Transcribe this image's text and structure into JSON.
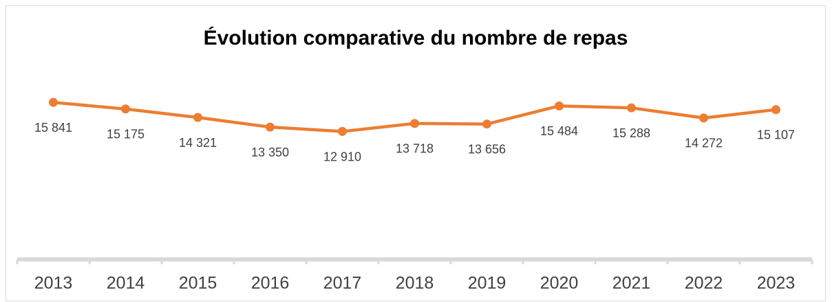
{
  "chart_data": {
    "type": "line",
    "title": "Évolution comparative du nombre de repas",
    "categories": [
      "2013",
      "2014",
      "2015",
      "2016",
      "2017",
      "2018",
      "2019",
      "2020",
      "2021",
      "2022",
      "2023"
    ],
    "series": [
      {
        "color": "#ed7d31",
        "values": [
          15841,
          15175,
          14321,
          13350,
          12910,
          13718,
          13656,
          15484,
          15288,
          14272,
          15107
        ],
        "value_labels": [
          "15 841",
          "15 175",
          "14 321",
          "13 350",
          "12 910",
          "13 718",
          "13 656",
          "15 484",
          "15 288",
          "14 272",
          "15 107"
        ]
      }
    ],
    "ylim": [
      0,
      18000
    ]
  }
}
